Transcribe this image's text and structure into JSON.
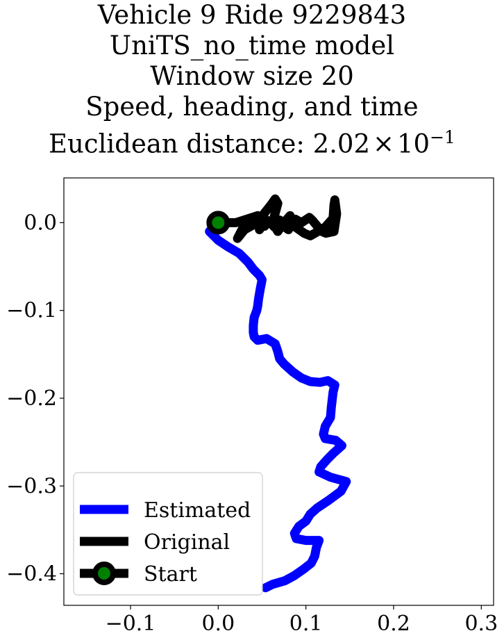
{
  "chart_data": {
    "type": "line",
    "title_lines": [
      "Vehicle 9 Ride 9229843",
      "UniTS_no_time model",
      "Window size 20",
      "Speed, heading, and time"
    ],
    "title_last_prefix": "Euclidean distance: 2.02",
    "title_last_times": "×",
    "title_last_base": "10",
    "title_last_exp": "−1",
    "xlim": [
      -0.176,
      0.314
    ],
    "ylim": [
      -0.436,
      0.051
    ],
    "xticks": [
      {
        "value": -0.1,
        "label": "−0.1"
      },
      {
        "value": 0.0,
        "label": "0.0"
      },
      {
        "value": 0.1,
        "label": "0.1"
      },
      {
        "value": 0.2,
        "label": "0.2"
      },
      {
        "value": 0.3,
        "label": "0.3"
      }
    ],
    "yticks": [
      {
        "value": 0.0,
        "label": "0.0"
      },
      {
        "value": -0.1,
        "label": "−0.1"
      },
      {
        "value": -0.2,
        "label": "−0.2"
      },
      {
        "value": -0.3,
        "label": "−0.3"
      },
      {
        "value": -0.4,
        "label": "−0.4"
      }
    ],
    "legend_position": "lower left",
    "series": [
      {
        "name": "Estimated",
        "color": "#0000ff",
        "x": [
          0.0,
          -0.01,
          0.0,
          0.012,
          0.024,
          0.034,
          0.04,
          0.047,
          0.05,
          0.048,
          0.046,
          0.045,
          0.044,
          0.041,
          0.04,
          0.04,
          0.041,
          0.045,
          0.055,
          0.065,
          0.068,
          0.07,
          0.075,
          0.085,
          0.095,
          0.105,
          0.116,
          0.125,
          0.133,
          0.131,
          0.129,
          0.128,
          0.122,
          0.12,
          0.122,
          0.134,
          0.141,
          0.131,
          0.124,
          0.117,
          0.115,
          0.128,
          0.146,
          0.14,
          0.125,
          0.113,
          0.105,
          0.1,
          0.092,
          0.087,
          0.089,
          0.1,
          0.115,
          0.112,
          0.11,
          0.106,
          0.097,
          0.087,
          0.076,
          0.062,
          0.054
        ],
        "y": [
          0.0,
          -0.01,
          -0.02,
          -0.028,
          -0.035,
          -0.045,
          -0.053,
          -0.06,
          -0.065,
          -0.075,
          -0.087,
          -0.095,
          -0.1,
          -0.108,
          -0.117,
          -0.125,
          -0.13,
          -0.134,
          -0.132,
          -0.138,
          -0.147,
          -0.155,
          -0.161,
          -0.17,
          -0.177,
          -0.181,
          -0.182,
          -0.18,
          -0.185,
          -0.193,
          -0.21,
          -0.222,
          -0.232,
          -0.241,
          -0.246,
          -0.248,
          -0.254,
          -0.263,
          -0.27,
          -0.278,
          -0.284,
          -0.29,
          -0.295,
          -0.306,
          -0.317,
          -0.325,
          -0.332,
          -0.34,
          -0.346,
          -0.354,
          -0.36,
          -0.362,
          -0.362,
          -0.37,
          -0.38,
          -0.388,
          -0.395,
          -0.402,
          -0.408,
          -0.412,
          -0.416
        ]
      },
      {
        "name": "Original",
        "color": "#000000",
        "x": [
          0.0,
          0.02,
          0.045,
          0.055,
          0.047,
          0.052,
          0.06,
          0.065,
          0.068,
          0.062,
          0.068,
          0.075,
          0.082,
          0.088,
          0.098,
          0.105,
          0.112,
          0.122,
          0.131,
          0.132,
          0.133,
          0.135,
          0.132,
          0.123,
          0.118,
          0.113,
          0.108,
          0.104,
          0.095,
          0.088,
          0.084,
          0.08,
          0.075,
          0.07,
          0.064,
          0.058,
          0.053,
          0.046,
          0.04,
          0.034,
          0.03,
          0.026,
          0.022,
          0.03,
          0.05,
          0.06
        ],
        "y": [
          0.0,
          0.0,
          0.008,
          0.003,
          -0.008,
          0.01,
          0.02,
          0.027,
          0.022,
          0.0,
          -0.01,
          0.0,
          0.008,
          -0.005,
          -0.012,
          -0.015,
          -0.011,
          -0.005,
          0.005,
          0.02,
          0.026,
          0.01,
          -0.01,
          -0.012,
          -0.01,
          -0.004,
          0.002,
          0.006,
          0.0,
          0.004,
          -0.002,
          -0.008,
          -0.004,
          0.003,
          -0.005,
          0.002,
          -0.004,
          0.001,
          0.003,
          0.001,
          -0.003,
          -0.01,
          -0.018,
          -0.008,
          0.003,
          0.0
        ]
      }
    ],
    "start": {
      "name": "Start",
      "x": 0.0,
      "y": 0.0,
      "color": "#008000",
      "edge_color": "#000000"
    }
  }
}
